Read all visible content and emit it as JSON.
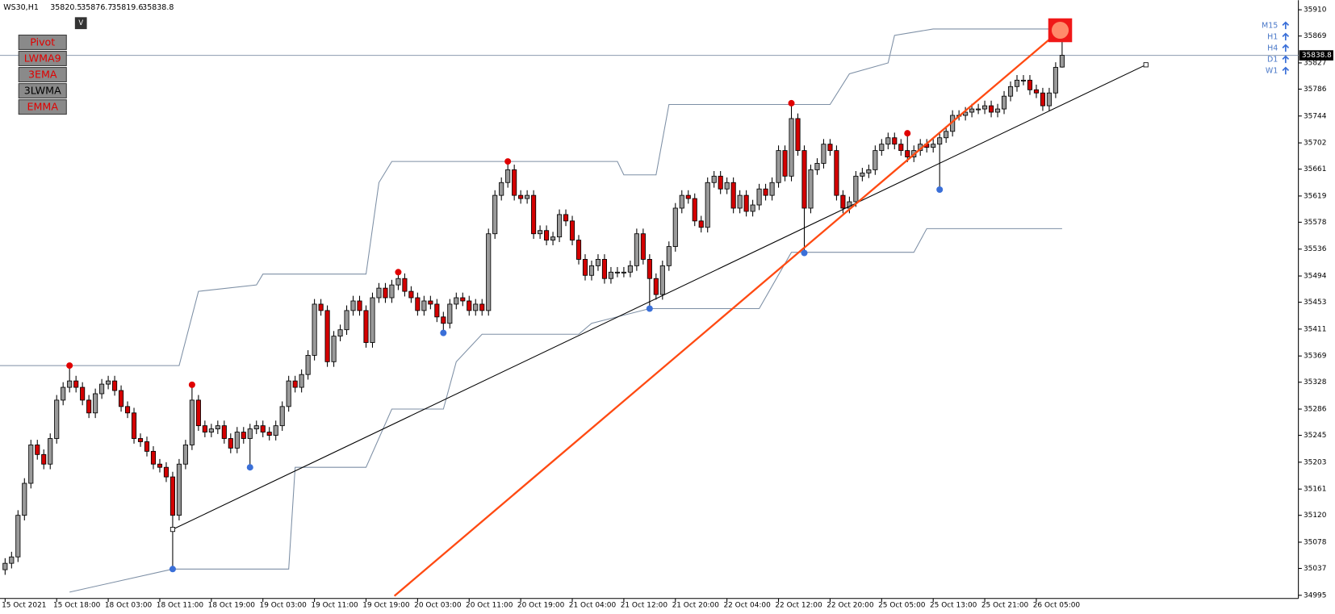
{
  "chart_data": {
    "type": "candlestick",
    "title": "WS30,H1",
    "ylim": [
      34990,
      35925
    ],
    "yticks": [
      35910,
      35869,
      35827,
      35786,
      35744,
      35702,
      35661,
      35619,
      35578,
      35536,
      35494,
      35453,
      35411,
      35369,
      35328,
      35286,
      35245,
      35203,
      35161,
      35120,
      35078,
      35037,
      34995
    ],
    "up_color": "#9a9a9a",
    "down_color": "#d40000",
    "categories": [
      "15 Oct 2021",
      null,
      null,
      null,
      null,
      null,
      null,
      null,
      "15 Oct 18:00",
      null,
      null,
      null,
      null,
      null,
      null,
      null,
      "18 Oct 03:00",
      null,
      null,
      null,
      null,
      null,
      null,
      null,
      "18 Oct 11:00",
      null,
      null,
      null,
      null,
      null,
      null,
      null,
      "18 Oct 19:00",
      null,
      null,
      null,
      null,
      null,
      null,
      null,
      "19 Oct 03:00",
      null,
      null,
      null,
      null,
      null,
      null,
      null,
      "19 Oct 11:00",
      null,
      null,
      null,
      null,
      null,
      null,
      null,
      "19 Oct 19:00",
      null,
      null,
      null,
      null,
      null,
      null,
      null,
      "20 Oct 03:00",
      null,
      null,
      null,
      null,
      null,
      null,
      null,
      "20 Oct 11:00",
      null,
      null,
      null,
      null,
      null,
      null,
      null,
      "20 Oct 19:00",
      null,
      null,
      null,
      null,
      null,
      null,
      null,
      "21 Oct 04:00",
      null,
      null,
      null,
      null,
      null,
      null,
      null,
      "21 Oct 12:00",
      null,
      null,
      null,
      null,
      null,
      null,
      null,
      "21 Oct 20:00",
      null,
      null,
      null,
      null,
      null,
      null,
      null,
      "22 Oct 04:00",
      null,
      null,
      null,
      null,
      null,
      null,
      null,
      "22 Oct 12:00",
      null,
      null,
      null,
      null,
      null,
      null,
      null,
      "22 Oct 20:00",
      null,
      null,
      null,
      null,
      null,
      null,
      null,
      "25 Oct 05:00",
      null,
      null,
      null,
      null,
      null,
      null,
      null,
      "25 Oct 13:00",
      null,
      null,
      null,
      null,
      null,
      null,
      null,
      "25 Oct 21:00",
      null,
      null,
      null,
      null,
      null,
      null,
      null,
      "26 Oct 05:00",
      null,
      null,
      null,
      null
    ],
    "candles": {
      "open": [
        35035,
        35045,
        35055,
        35120,
        35170,
        35230,
        35215,
        35200,
        35240,
        35300,
        35320,
        35330,
        35320,
        35300,
        35280,
        35310,
        35325,
        35330,
        35315,
        35290,
        35280,
        35240,
        35235,
        35220,
        35200,
        35195,
        35180,
        35120,
        35200,
        35230,
        35300,
        35260,
        35250,
        35255,
        35260,
        35240,
        35225,
        35250,
        35240,
        35255,
        35260,
        35250,
        35245,
        35260,
        35290,
        35330,
        35320,
        35340,
        35370,
        35450,
        35440,
        35360,
        35400,
        35410,
        35440,
        35455,
        35440,
        35390,
        35460,
        35475,
        35460,
        35480,
        35490,
        35470,
        35460,
        35440,
        35455,
        35450,
        35430,
        35420,
        35450,
        35460,
        35455,
        35440,
        35450,
        35440,
        35560,
        35620,
        35640,
        35660,
        35620,
        35615,
        35620,
        35560,
        35565,
        35550,
        35555,
        35590,
        35580,
        35550,
        35520,
        35495,
        35510,
        35520,
        35490,
        35500,
        35500,
        35500,
        35510,
        35560,
        35520,
        35490,
        35465,
        35510,
        35540,
        35600,
        35620,
        35615,
        35580,
        35570,
        35640,
        35650,
        35630,
        35640,
        35600,
        35620,
        35595,
        35605,
        35630,
        35620,
        35640,
        35690,
        35650,
        35740,
        35690,
        35600,
        35660,
        35670,
        35700,
        35690,
        35620,
        35600,
        35610,
        35650,
        35655,
        35660,
        35690,
        35700,
        35710,
        35700,
        35690,
        35680,
        35690,
        35700,
        35695,
        35700,
        35710,
        35720,
        35745,
        35745,
        35750,
        35755,
        35755,
        35760,
        35750,
        35755,
        35775,
        35790,
        35800,
        35800,
        35785,
        35780,
        35760,
        35780,
        35820.5
      ],
      "high": [
        35053,
        35063,
        35128,
        35178,
        35238,
        35238,
        35223,
        35248,
        35308,
        35328,
        35354,
        35338,
        35328,
        35308,
        35318,
        35333,
        35338,
        35338,
        35323,
        35298,
        35288,
        35248,
        35243,
        35228,
        35208,
        35203,
        35188,
        35208,
        35238,
        35324,
        35308,
        35268,
        35263,
        35268,
        35268,
        35248,
        35258,
        35258,
        35263,
        35268,
        35268,
        35258,
        35268,
        35298,
        35338,
        35338,
        35348,
        35378,
        35458,
        35458,
        35448,
        35408,
        35418,
        35448,
        35463,
        35463,
        35448,
        35468,
        35483,
        35483,
        35488,
        35500,
        35498,
        35478,
        35468,
        35463,
        35463,
        35458,
        35438,
        35458,
        35468,
        35468,
        35463,
        35458,
        35458,
        35568,
        35628,
        35648,
        35673,
        35668,
        35628,
        35628,
        35628,
        35573,
        35573,
        35563,
        35598,
        35598,
        35588,
        35558,
        35528,
        35518,
        35528,
        35528,
        35508,
        35508,
        35508,
        35518,
        35568,
        35568,
        35528,
        35498,
        35518,
        35548,
        35608,
        35628,
        35628,
        35623,
        35588,
        35648,
        35658,
        35658,
        35648,
        35648,
        35628,
        35628,
        35613,
        35638,
        35638,
        35648,
        35698,
        35698,
        35764,
        35748,
        35698,
        35668,
        35678,
        35708,
        35708,
        35698,
        35628,
        35618,
        35658,
        35663,
        35668,
        35698,
        35708,
        35718,
        35718,
        35708,
        35717,
        35698,
        35708,
        35708,
        35708,
        35718,
        35728,
        35753,
        35753,
        35758,
        35763,
        35763,
        35768,
        35768,
        35763,
        35783,
        35798,
        35808,
        35808,
        35808,
        35793,
        35788,
        35788,
        35828,
        35876.7
      ],
      "low": [
        35027,
        35037,
        35047,
        35112,
        35162,
        35207,
        35192,
        35192,
        35232,
        35292,
        35312,
        35312,
        35292,
        35272,
        35272,
        35302,
        35317,
        35307,
        35282,
        35272,
        35232,
        35227,
        35212,
        35192,
        35187,
        35172,
        35036,
        35112,
        35192,
        35222,
        35252,
        35242,
        35242,
        35247,
        35232,
        35217,
        35217,
        35232,
        35195,
        35247,
        35242,
        35237,
        35237,
        35252,
        35282,
        35312,
        35312,
        35332,
        35362,
        35432,
        35352,
        35352,
        35392,
        35402,
        35432,
        35432,
        35382,
        35382,
        35452,
        35452,
        35452,
        35472,
        35462,
        35452,
        35432,
        35432,
        35442,
        35422,
        35405,
        35412,
        35442,
        35447,
        35432,
        35432,
        35432,
        35432,
        35552,
        35612,
        35632,
        35612,
        35607,
        35607,
        35552,
        35552,
        35542,
        35542,
        35547,
        35572,
        35542,
        35512,
        35487,
        35487,
        35502,
        35482,
        35482,
        35492,
        35492,
        35492,
        35502,
        35512,
        35443,
        35457,
        35457,
        35502,
        35532,
        35592,
        35607,
        35572,
        35562,
        35562,
        35632,
        35622,
        35622,
        35592,
        35592,
        35587,
        35587,
        35597,
        35612,
        35612,
        35632,
        35642,
        35642,
        35682,
        35530,
        35592,
        35652,
        35662,
        35682,
        35612,
        35592,
        35592,
        35602,
        35642,
        35647,
        35652,
        35682,
        35692,
        35692,
        35682,
        35672,
        35672,
        35682,
        35687,
        35687,
        35629,
        35702,
        35712,
        35737,
        35737,
        35742,
        35747,
        35747,
        35742,
        35742,
        35747,
        35767,
        35782,
        35792,
        35777,
        35772,
        35752,
        35752,
        35772,
        35819.6
      ],
      "close": [
        35045,
        35055,
        35120,
        35170,
        35230,
        35215,
        35200,
        35240,
        35300,
        35320,
        35330,
        35320,
        35300,
        35280,
        35310,
        35325,
        35330,
        35315,
        35290,
        35280,
        35240,
        35235,
        35220,
        35200,
        35195,
        35180,
        35120,
        35200,
        35230,
        35300,
        35260,
        35250,
        35255,
        35260,
        35240,
        35225,
        35250,
        35240,
        35255,
        35260,
        35250,
        35245,
        35260,
        35290,
        35330,
        35320,
        35340,
        35370,
        35450,
        35440,
        35360,
        35400,
        35410,
        35440,
        35455,
        35440,
        35390,
        35460,
        35475,
        35460,
        35480,
        35490,
        35470,
        35460,
        35440,
        35455,
        35450,
        35430,
        35420,
        35450,
        35460,
        35455,
        35440,
        35450,
        35440,
        35560,
        35620,
        35640,
        35660,
        35620,
        35615,
        35620,
        35560,
        35565,
        35550,
        35555,
        35590,
        35580,
        35550,
        35520,
        35495,
        35510,
        35520,
        35490,
        35500,
        35500,
        35500,
        35510,
        35560,
        35520,
        35490,
        35465,
        35510,
        35540,
        35600,
        35620,
        35615,
        35580,
        35570,
        35640,
        35650,
        35630,
        35640,
        35600,
        35620,
        35595,
        35605,
        35630,
        35620,
        35640,
        35690,
        35650,
        35740,
        35690,
        35600,
        35660,
        35670,
        35700,
        35690,
        35620,
        35600,
        35610,
        35650,
        35655,
        35660,
        35690,
        35700,
        35710,
        35700,
        35690,
        35680,
        35690,
        35700,
        35695,
        35700,
        35710,
        35720,
        35745,
        35745,
        35750,
        35755,
        35755,
        35760,
        35750,
        35755,
        35775,
        35790,
        35800,
        35800,
        35785,
        35780,
        35760,
        35780,
        35820,
        35838.8
      ]
    },
    "pivot_highs": [
      10,
      29,
      61,
      78,
      122,
      140
    ],
    "pivot_lows": [
      26,
      38,
      68,
      100,
      124,
      145
    ],
    "pivot_high_color": "#e00000",
    "pivot_low_color": "#3a6fd8",
    "channels": [
      {
        "color": "#7d8fa5",
        "x": [
          -1,
          27,
          30,
          39,
          40,
          56,
          58,
          60,
          95,
          96,
          101,
          103,
          128,
          131,
          137,
          138,
          144,
          162
        ],
        "values": [
          35354,
          35354,
          35470,
          35480,
          35497,
          35497,
          35640,
          35673,
          35673,
          35652,
          35652,
          35762,
          35762,
          35810,
          35827,
          35870,
          35880,
          35880
        ]
      },
      {
        "color": "#7d8fa5",
        "x": [
          10,
          26,
          44,
          45,
          56,
          60,
          68,
          70,
          74,
          89,
          91,
          100,
          117,
          122,
          141,
          143,
          164
        ],
        "values": [
          35000,
          35036,
          35036,
          35195,
          35195,
          35286,
          35286,
          35360,
          35403,
          35403,
          35420,
          35443,
          35443,
          35531,
          35531,
          35568,
          35568
        ]
      }
    ],
    "trendlines": [
      {
        "color": "#000000",
        "x": [
          26,
          177
        ],
        "values": [
          35098,
          35824
        ]
      },
      {
        "color": "#ff4a12",
        "x": [
          60.4,
          163.7
        ],
        "values": [
          34994,
          35878
        ]
      }
    ],
    "buttons": [
      {
        "label": "Pivot",
        "color": "#e00000"
      },
      {
        "label": "LWMA9",
        "color": "#e00000"
      },
      {
        "label": "3EMA",
        "color": "#e00000"
      },
      {
        "label": "3LWMA",
        "color": "#000000"
      },
      {
        "label": "EMMA",
        "color": "#e00000"
      }
    ],
    "menu_button": "V",
    "timeframes": [
      "M15",
      "H1",
      "H4",
      "D1",
      "W1"
    ]
  }
}
